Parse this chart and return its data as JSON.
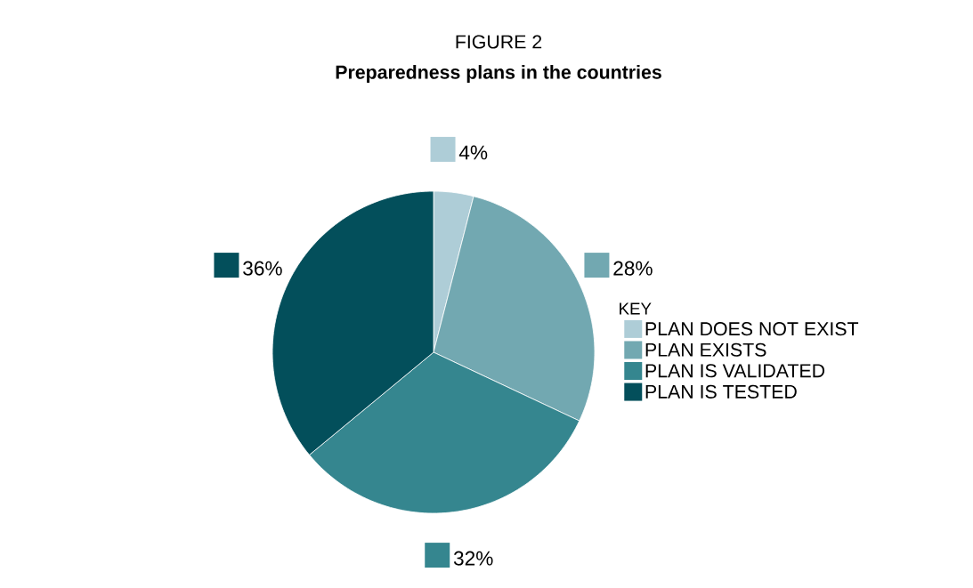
{
  "chart_data": {
    "type": "pie",
    "title": "Preparedness plans in the countries",
    "annotations": [
      "FIGURE 2"
    ],
    "categories": [
      "PLAN DOES NOT EXIST",
      "PLAN EXISTS",
      "PLAN IS VALIDATED",
      "PLAN IS TESTED"
    ],
    "values": [
      4,
      28,
      32,
      36
    ],
    "value_labels": [
      "4%",
      "28%",
      "32%",
      "36%"
    ],
    "colors": [
      "#aecdd7",
      "#72a8b1",
      "#35868f",
      "#034f5b"
    ],
    "legend_title": "KEY",
    "legend": "right"
  }
}
